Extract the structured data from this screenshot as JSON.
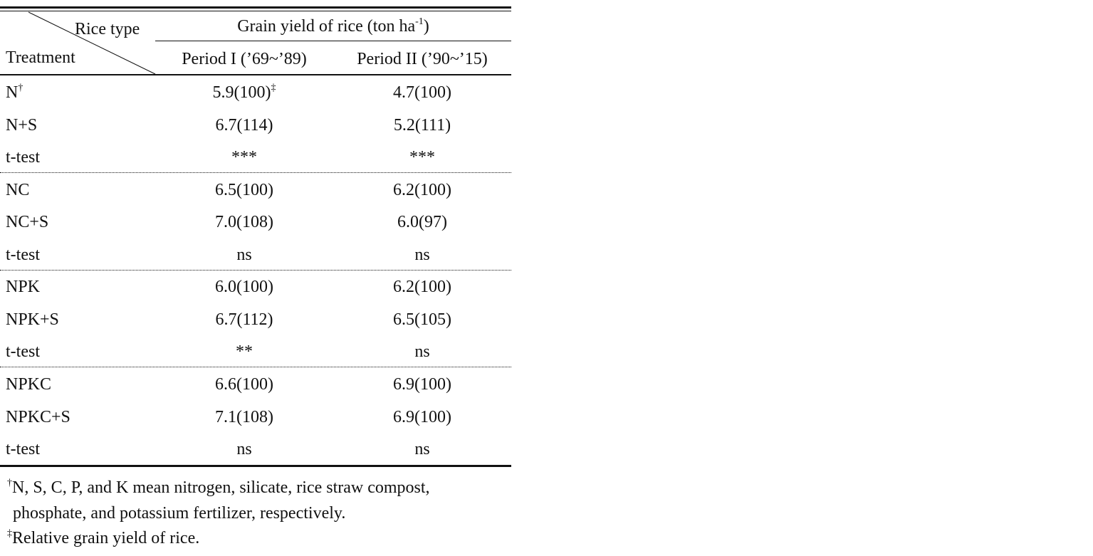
{
  "header": {
    "corner_top": "Rice type",
    "corner_bottom": "Treatment",
    "yield_prefix": "Grain yield of rice (ton ha",
    "yield_sup": "-1",
    "yield_suffix": ")",
    "columns": [
      "Period I (’69~’89)",
      "Period II (’90~’15)"
    ]
  },
  "groups": [
    {
      "rows": [
        {
          "treatment": "N",
          "treatment_sup": "†",
          "period1": "5.9(100)",
          "period1_sup": "‡",
          "period2": "4.7(100)"
        },
        {
          "treatment": "N+S",
          "period1": "6.7(114)",
          "period2": "5.2(111)"
        },
        {
          "treatment": "t-test",
          "period1": "***",
          "period2": "***"
        }
      ]
    },
    {
      "rows": [
        {
          "treatment": "NC",
          "period1": "6.5(100)",
          "period2": "6.2(100)"
        },
        {
          "treatment": "NC+S",
          "period1": "7.0(108)",
          "period2": "6.0(97)"
        },
        {
          "treatment": "t-test",
          "period1": "ns",
          "period2": "ns"
        }
      ]
    },
    {
      "rows": [
        {
          "treatment": "NPK",
          "period1": "6.0(100)",
          "period2": "6.2(100)"
        },
        {
          "treatment": "NPK+S",
          "period1": "6.7(112)",
          "period2": "6.5(105)"
        },
        {
          "treatment": "t-test",
          "period1": "**",
          "period2": "ns"
        }
      ]
    },
    {
      "rows": [
        {
          "treatment": "NPKC",
          "period1": "6.6(100)",
          "period2": "6.9(100)"
        },
        {
          "treatment": "NPKC+S",
          "period1": "7.1(108)",
          "period2": "6.9(100)"
        },
        {
          "treatment": "t-test",
          "period1": "ns",
          "period2": "ns"
        }
      ]
    }
  ],
  "footnotes": [
    {
      "symbol": "†",
      "lines": [
        "N, S, C, P, and K mean nitrogen, silicate, rice straw compost,",
        "phosphate, and potassium fertilizer, respectively."
      ]
    },
    {
      "symbol": "‡",
      "lines": [
        "Relative grain yield of rice."
      ]
    }
  ]
}
